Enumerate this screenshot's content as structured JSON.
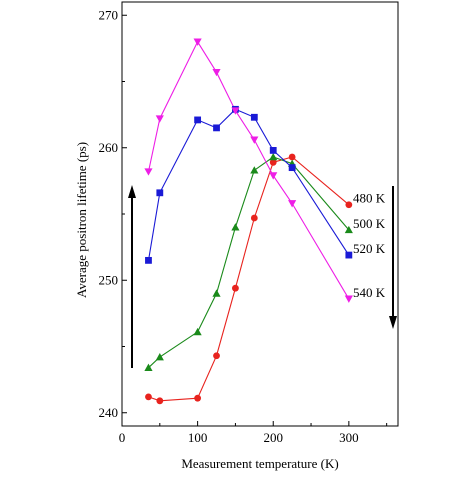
{
  "chart_data": {
    "type": "line",
    "xlabel": "Measurement temperature (K)",
    "ylabel": "Average positron lifetime (ps)",
    "xlim": [
      0,
      365
    ],
    "ylim": [
      239,
      271
    ],
    "xticks": [
      0,
      100,
      200,
      300
    ],
    "yticks": [
      240,
      250,
      260,
      270
    ],
    "grid": false,
    "legend": "none",
    "series": [
      {
        "name": "480 K",
        "color": "#e8231e",
        "marker": "circle",
        "x": [
          35,
          50,
          100,
          125,
          150,
          175,
          200,
          225,
          300
        ],
        "y": [
          241.2,
          240.9,
          241.1,
          244.3,
          249.4,
          254.7,
          258.9,
          259.3,
          255.7
        ]
      },
      {
        "name": "500 K",
        "color": "#1a8a1a",
        "marker": "triangle-up",
        "x": [
          35,
          50,
          100,
          125,
          150,
          175,
          200,
          225,
          300
        ],
        "y": [
          243.4,
          244.2,
          246.1,
          249.0,
          254.0,
          258.3,
          259.3,
          258.8,
          253.8
        ]
      },
      {
        "name": "520 K",
        "color": "#1a1ad6",
        "marker": "square",
        "x": [
          35,
          50,
          100,
          125,
          150,
          175,
          200,
          225,
          300
        ],
        "y": [
          251.5,
          256.6,
          262.1,
          261.5,
          262.9,
          262.3,
          259.8,
          258.5,
          251.9
        ]
      },
      {
        "name": "540 K",
        "color": "#ee1ee6",
        "marker": "triangle-down",
        "x": [
          35,
          50,
          100,
          125,
          150,
          175,
          200,
          225,
          300
        ],
        "y": [
          258.2,
          262.2,
          268.0,
          265.7,
          262.8,
          260.6,
          257.9,
          255.8,
          248.6
        ]
      }
    ]
  }
}
